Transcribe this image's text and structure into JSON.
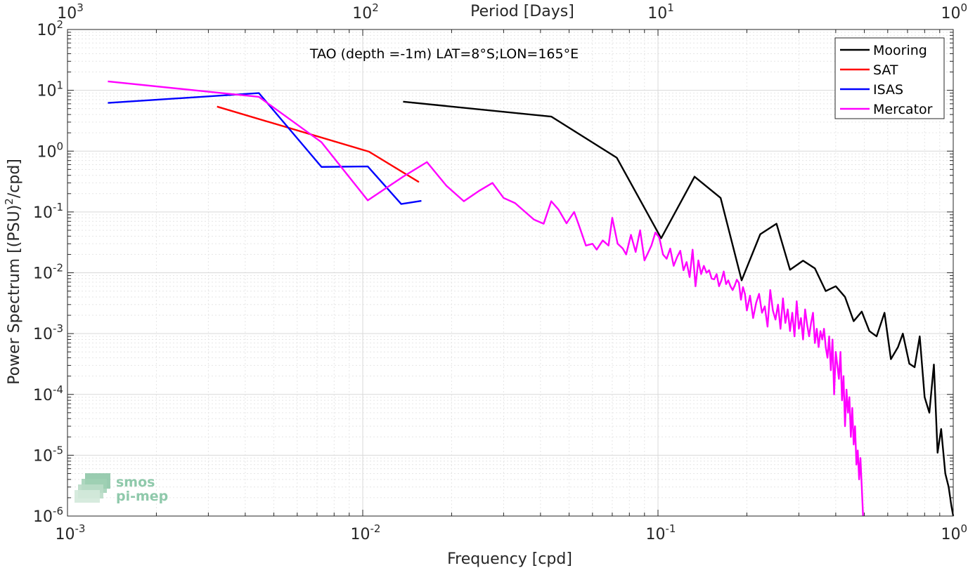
{
  "chart_data": {
    "type": "line",
    "title": "TAO (depth =-1m) LAT=8°S;LON=165°E",
    "xlabel": "Frequency [cpd]",
    "ylabel_base": "Power Spectrum [(PSU)",
    "ylabel_sup": "2",
    "ylabel_tail": "/cpd]",
    "top_xlabel": "Period [Days]",
    "xscale": "log",
    "yscale": "log",
    "xlim": [
      0.001,
      1
    ],
    "ylim": [
      1e-06,
      100
    ],
    "grid": true,
    "legend_position": "top-right",
    "x_ticks": [
      {
        "value": 0.001,
        "base": "10",
        "exp": "-3"
      },
      {
        "value": 0.01,
        "base": "10",
        "exp": "-2"
      },
      {
        "value": 0.1,
        "base": "10",
        "exp": "-1"
      },
      {
        "value": 1,
        "base": "10",
        "exp": "0"
      }
    ],
    "y_ticks": [
      {
        "value": 1e-06,
        "base": "10",
        "exp": "-6"
      },
      {
        "value": 1e-05,
        "base": "10",
        "exp": "-5"
      },
      {
        "value": 0.0001,
        "base": "10",
        "exp": "-4"
      },
      {
        "value": 0.001,
        "base": "10",
        "exp": "-3"
      },
      {
        "value": 0.01,
        "base": "10",
        "exp": "-2"
      },
      {
        "value": 0.1,
        "base": "10",
        "exp": "-1"
      },
      {
        "value": 1,
        "base": "10",
        "exp": "0"
      },
      {
        "value": 10,
        "base": "10",
        "exp": "1"
      },
      {
        "value": 100,
        "base": "10",
        "exp": "2"
      }
    ],
    "top_ticks": [
      {
        "value": 0.001,
        "base": "10",
        "exp": "3"
      },
      {
        "value": 0.01,
        "base": "10",
        "exp": "2"
      },
      {
        "value": 0.1,
        "base": "10",
        "exp": "1"
      },
      {
        "value": 1,
        "base": "10",
        "exp": "0"
      }
    ],
    "series": [
      {
        "name": "Mooring",
        "color": "#000000",
        "x": [
          0.0137,
          0.0435,
          0.0725,
          0.1025,
          0.133,
          0.163,
          0.192,
          0.222,
          0.252,
          0.28,
          0.31,
          0.34,
          0.37,
          0.4,
          0.43,
          0.46,
          0.49,
          0.52,
          0.55,
          0.585,
          0.615,
          0.65,
          0.675,
          0.71,
          0.74,
          0.77,
          0.8,
          0.83,
          0.86,
          0.885,
          0.91,
          0.94,
          0.965,
          0.985,
          1.0
        ],
        "y": [
          6.5,
          3.7,
          0.78,
          0.037,
          0.38,
          0.17,
          0.0075,
          0.043,
          0.064,
          0.0112,
          0.0158,
          0.0118,
          0.005,
          0.006,
          0.004,
          0.0016,
          0.0023,
          0.0011,
          0.0009,
          0.0022,
          0.00038,
          0.0006,
          0.001,
          0.00032,
          0.00028,
          0.0009,
          9e-05,
          5e-05,
          0.00031,
          1.1e-05,
          2.7e-05,
          5e-06,
          3e-06,
          1.5e-06,
          1e-06
        ]
      },
      {
        "name": "SAT",
        "color": "#ff0000",
        "x": [
          0.00321,
          0.0105,
          0.0155
        ],
        "y": [
          5.4,
          0.98,
          0.31
        ]
      },
      {
        "name": "ISAS",
        "color": "#0000ff",
        "x": [
          0.00137,
          0.00445,
          0.00725,
          0.0104,
          0.0135,
          0.0158
        ],
        "y": [
          6.2,
          9.0,
          0.55,
          0.56,
          0.135,
          0.152
        ]
      },
      {
        "name": "Mercator",
        "color": "#ff00ff",
        "x": [
          0.00137,
          0.00445,
          0.00725,
          0.0104,
          0.0137,
          0.0165,
          0.0192,
          0.022,
          0.0247,
          0.0275,
          0.03,
          0.0328,
          0.0355,
          0.038,
          0.041,
          0.0435,
          0.046,
          0.049,
          0.052,
          0.054,
          0.057,
          0.06,
          0.062,
          0.065,
          0.068,
          0.07,
          0.073,
          0.076,
          0.078,
          0.081,
          0.084,
          0.087,
          0.09,
          0.092,
          0.095,
          0.098,
          0.101,
          0.104,
          0.107,
          0.11,
          0.113,
          0.116,
          0.119,
          0.122,
          0.125,
          0.128,
          0.131,
          0.134,
          0.137,
          0.14,
          0.143,
          0.146,
          0.149,
          0.152,
          0.155,
          0.158,
          0.161,
          0.164,
          0.167,
          0.17,
          0.173,
          0.176,
          0.179,
          0.182,
          0.185,
          0.188,
          0.191,
          0.194,
          0.197,
          0.2,
          0.205,
          0.21,
          0.215,
          0.22,
          0.225,
          0.23,
          0.235,
          0.24,
          0.245,
          0.25,
          0.255,
          0.26,
          0.265,
          0.27,
          0.275,
          0.28,
          0.285,
          0.29,
          0.295,
          0.3,
          0.305,
          0.31,
          0.315,
          0.32,
          0.325,
          0.33,
          0.335,
          0.34,
          0.345,
          0.35,
          0.355,
          0.36,
          0.365,
          0.37,
          0.375,
          0.38,
          0.385,
          0.39,
          0.395,
          0.4,
          0.405,
          0.41,
          0.415,
          0.42,
          0.425,
          0.43,
          0.435,
          0.44,
          0.445,
          0.45,
          0.455,
          0.46,
          0.465,
          0.47,
          0.475,
          0.48,
          0.485,
          0.49,
          0.495
        ],
        "y": [
          14.0,
          7.8,
          1.4,
          0.155,
          0.38,
          0.66,
          0.27,
          0.15,
          0.22,
          0.3,
          0.17,
          0.14,
          0.1,
          0.075,
          0.064,
          0.15,
          0.11,
          0.065,
          0.1,
          0.06,
          0.028,
          0.03,
          0.024,
          0.034,
          0.028,
          0.08,
          0.03,
          0.025,
          0.02,
          0.042,
          0.022,
          0.05,
          0.016,
          0.02,
          0.028,
          0.046,
          0.038,
          0.02,
          0.017,
          0.025,
          0.013,
          0.018,
          0.023,
          0.011,
          0.015,
          0.0085,
          0.024,
          0.006,
          0.016,
          0.0095,
          0.013,
          0.01,
          0.011,
          0.008,
          0.0078,
          0.0095,
          0.006,
          0.0075,
          0.0105,
          0.0065,
          0.0075,
          0.006,
          0.0052,
          0.0062,
          0.0077,
          0.0068,
          0.0036,
          0.0058,
          0.0045,
          0.0024,
          0.0042,
          0.0018,
          0.0032,
          0.0045,
          0.0022,
          0.0028,
          0.0013,
          0.0052,
          0.0024,
          0.0017,
          0.003,
          0.0012,
          0.0038,
          0.0015,
          0.0025,
          0.0011,
          0.0022,
          0.0009,
          0.0034,
          0.0012,
          0.0018,
          0.0008,
          0.0025,
          0.0014,
          0.0009,
          0.0015,
          0.0022,
          0.0007,
          0.0012,
          0.0006,
          0.0011,
          0.0008,
          0.0012,
          0.0006,
          0.0004,
          0.0009,
          0.00025,
          0.0008,
          0.0001,
          0.0005,
          0.0003,
          0.00018,
          0.0005,
          8e-05,
          0.0002,
          3e-05,
          0.00012,
          5e-05,
          9e-05,
          2e-05,
          6e-05,
          1.5e-05,
          3e-05,
          7e-06,
          1.2e-05,
          4e-06,
          9e-06,
          3e-06,
          1e-06
        ]
      }
    ]
  },
  "logo": {
    "line1": "smos",
    "line2": "pi-mep"
  }
}
